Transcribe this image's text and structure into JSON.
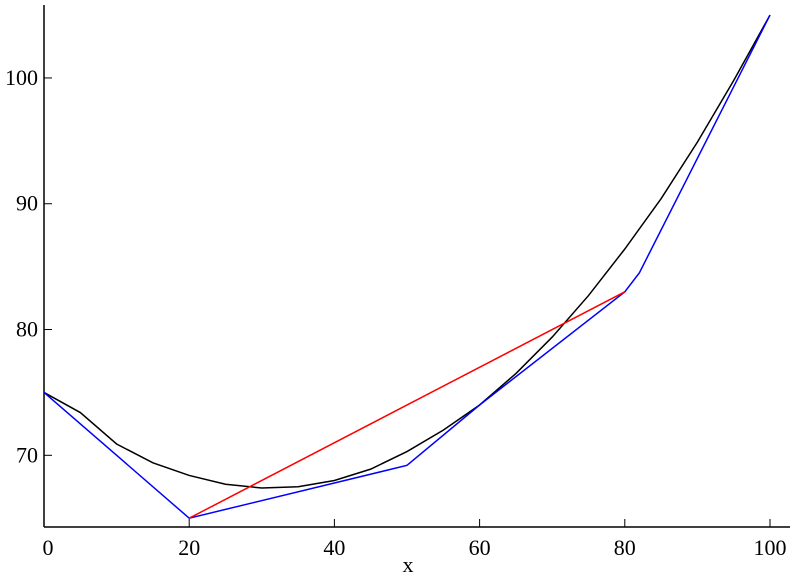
{
  "chart_data": {
    "type": "line",
    "x_label": "x",
    "xlim": [
      0,
      100
    ],
    "ylim": [
      64.3,
      105.8
    ],
    "xticks": [
      0,
      20,
      40,
      60,
      80,
      100
    ],
    "yticks": [
      70,
      80,
      90,
      100
    ],
    "series": [
      {
        "color": "#000000",
        "x": [
          0,
          5,
          10,
          15,
          20,
          25,
          30,
          35,
          40,
          45,
          50,
          55,
          60,
          65,
          70,
          75,
          80,
          85,
          90,
          95,
          100
        ],
        "values": [
          75,
          73.4,
          70.9,
          69.4,
          68.4,
          67.7,
          67.4,
          67.5,
          68,
          68.9,
          70.3,
          72,
          74,
          76.5,
          79.4,
          82.7,
          86.4,
          90.4,
          94.9,
          99.8,
          105
        ]
      },
      {
        "color": "#0000ff",
        "x": [
          0,
          20,
          40,
          50,
          60,
          80,
          82,
          100
        ],
        "values": [
          75,
          65,
          67.8,
          69.2,
          74,
          83,
          84.5,
          105
        ]
      },
      {
        "color": "#ff0000",
        "x": [
          20,
          80
        ],
        "values": [
          65,
          83
        ]
      }
    ]
  }
}
